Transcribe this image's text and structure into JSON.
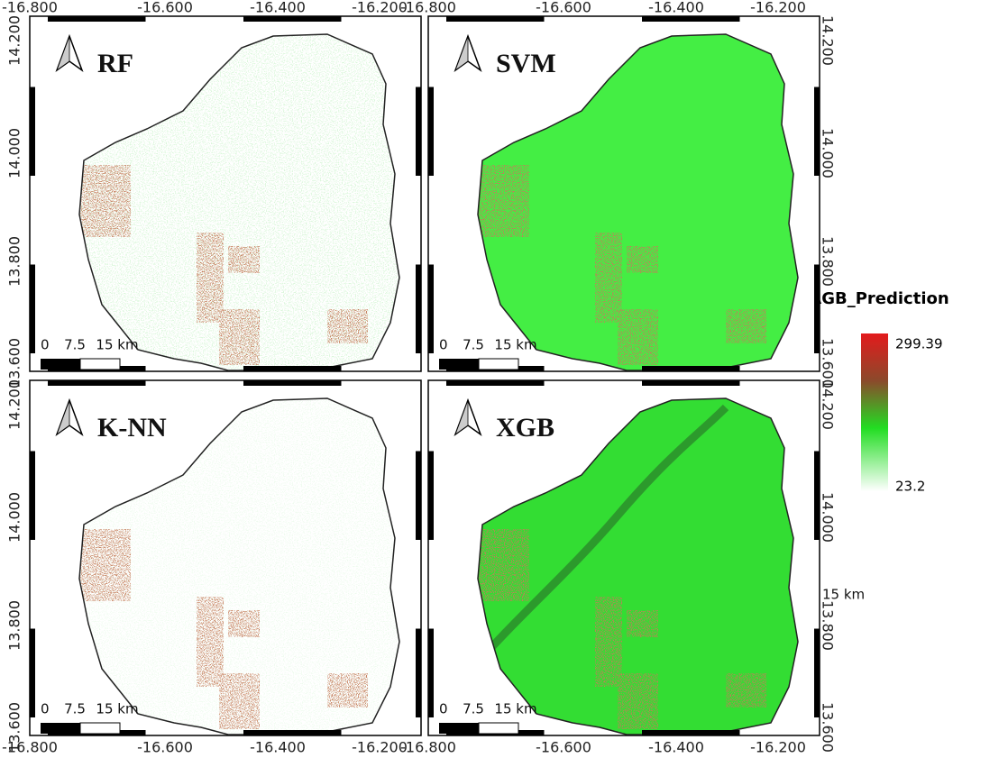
{
  "panels": [
    {
      "title": "RF"
    },
    {
      "title": "SVM"
    },
    {
      "title": "K-NN"
    },
    {
      "title": "XGB"
    }
  ],
  "x_ticks": [
    "-16.800",
    "-16.600",
    "-16.400",
    "-16.200"
  ],
  "y_ticks": [
    "14.200",
    "14.000",
    "13.800",
    "13.600"
  ],
  "scale_bar": {
    "labels": [
      "0",
      "7.5",
      "15 km"
    ]
  },
  "legend": {
    "title": "AGB_Prediction",
    "max": "299.39",
    "min": "23.2"
  }
}
